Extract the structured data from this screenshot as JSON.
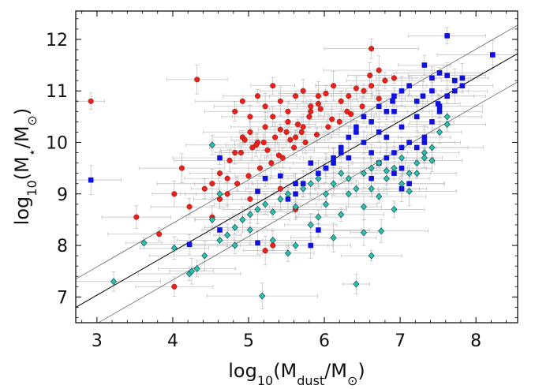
{
  "chart_data": {
    "type": "scatter",
    "title": "",
    "xlabel": "log10(Mdust/M⊙)",
    "ylabel": "log10(M⋆/M⊙)",
    "xlim": [
      2.72,
      8.55
    ],
    "ylim": [
      6.5,
      12.55
    ],
    "x_ticks": [
      3,
      4,
      5,
      6,
      7,
      8
    ],
    "y_ticks": [
      7,
      8,
      9,
      10,
      11,
      12
    ],
    "grid": false,
    "lines": [
      {
        "name": "best-fit",
        "slope": 0.845,
        "intercept": 4.5,
        "color": "#000000"
      },
      {
        "name": "upper-bound",
        "slope": 0.845,
        "intercept": 5.05,
        "color": "#555555"
      },
      {
        "name": "lower-bound",
        "slope": 0.845,
        "intercept": 3.95,
        "color": "#555555"
      }
    ],
    "series": [
      {
        "name": "red-circles",
        "marker": "circle",
        "color": "#e8211c",
        "x": [
          2.92,
          4.32,
          6.62,
          6.92,
          3.52,
          3.82,
          4.02,
          4.22,
          4.52,
          4.62,
          4.72,
          4.82,
          4.92,
          5.02,
          5.12,
          5.22,
          5.32,
          5.42,
          5.52,
          5.62,
          5.72,
          5.82,
          5.92,
          4.82,
          4.92,
          5.02,
          5.12,
          5.22,
          5.32,
          5.42,
          5.52,
          5.62,
          5.72,
          5.82,
          5.92,
          6.02,
          6.12,
          6.22,
          6.32,
          6.42,
          6.52,
          6.62,
          6.72,
          4.12,
          4.42,
          4.62,
          4.72,
          5.02,
          5.42,
          5.62,
          5.22,
          4.02,
          5.32,
          4.52,
          4.85,
          5.0,
          5.15,
          5.3,
          5.45,
          5.6,
          5.75,
          5.9,
          6.05,
          6.2,
          6.35,
          6.5,
          4.95,
          5.1,
          5.25,
          5.4,
          5.55,
          5.7,
          6.1,
          6.3,
          4.75,
          4.9,
          5.05,
          5.2,
          5.35,
          5.5,
          5.65,
          5.8,
          5.95,
          6.6,
          6.8,
          6.72
        ],
        "y": [
          10.8,
          11.22,
          11.82,
          11.25,
          8.55,
          8.22,
          9.0,
          8.75,
          9.2,
          8.9,
          9.3,
          9.8,
          10.1,
          10.2,
          10.0,
          10.3,
          10.5,
          10.25,
          10.4,
          10.1,
          10.3,
          10.6,
          10.9,
          10.6,
          10.8,
          10.5,
          10.9,
          10.7,
          11.1,
          10.8,
          10.6,
          10.9,
          11.0,
          10.7,
          10.75,
          10.95,
          11.1,
          10.8,
          10.9,
          11.05,
          11.0,
          11.1,
          10.85,
          9.5,
          9.1,
          9.4,
          9.0,
          8.9,
          9.1,
          8.7,
          7.9,
          7.2,
          8.0,
          8.55,
          9.2,
          9.35,
          9.5,
          9.6,
          9.7,
          9.9,
          10.0,
          10.15,
          10.3,
          10.4,
          10.55,
          10.7,
          10.05,
          9.95,
          9.85,
          9.75,
          10.05,
          10.2,
          10.45,
          10.6,
          9.65,
          9.8,
          9.9,
          10.0,
          10.1,
          10.2,
          10.35,
          10.5,
          10.65,
          11.3,
          11.2,
          11.4
        ]
      },
      {
        "name": "blue-squares",
        "marker": "square",
        "color": "#1111dd",
        "x": [
          2.92,
          4.22,
          4.62,
          5.12,
          5.92,
          5.82,
          7.62,
          8.22,
          7.32,
          7.52,
          7.72,
          7.82,
          6.72,
          6.92,
          7.02,
          7.12,
          7.22,
          7.42,
          6.52,
          6.62,
          6.82,
          6.02,
          6.12,
          6.22,
          6.32,
          6.42,
          5.72,
          5.62,
          5.52,
          6.72,
          7.02,
          7.52,
          6.92,
          7.32,
          5.22,
          6.12,
          7.02,
          7.12,
          7.42,
          7.62,
          6.82,
          6.62,
          7.22,
          6.92,
          6.42,
          6.52,
          5.82,
          5.92,
          6.02,
          6.32,
          6.22,
          6.72,
          7.32,
          7.52,
          7.72,
          7.02,
          6.82,
          6.62,
          7.12,
          7.22,
          6.92,
          7.62,
          7.42,
          7.82,
          5.62,
          5.42,
          5.12,
          4.62,
          7.02,
          6.9,
          7.3,
          7.5
        ],
        "y": [
          9.27,
          8.02,
          8.3,
          8.05,
          8.3,
          8.0,
          12.07,
          11.7,
          11.5,
          11.35,
          11.2,
          11.1,
          10.7,
          10.9,
          11.0,
          11.1,
          10.8,
          11.25,
          10.5,
          10.4,
          10.6,
          9.5,
          9.7,
          9.9,
          10.1,
          10.3,
          9.2,
          9.0,
          8.9,
          10.2,
          10.3,
          10.7,
          9.8,
          10.0,
          9.3,
          9.6,
          9.9,
          10.0,
          10.4,
          10.9,
          10.1,
          9.8,
          10.5,
          10.6,
          10.2,
          10.0,
          9.6,
          9.4,
          9.5,
          9.7,
          9.8,
          9.6,
          10.1,
          10.6,
          11.0,
          9.5,
          9.7,
          9.3,
          9.2,
          9.9,
          9.4,
          11.3,
          11.0,
          11.25,
          9.2,
          9.35,
          9.05,
          9.7,
          9.1,
          10.8,
          10.9,
          10.75
        ]
      },
      {
        "name": "cyan-diamonds",
        "marker": "diamond",
        "color": "#2fbfb0",
        "x": [
          3.22,
          3.62,
          4.02,
          4.22,
          4.25,
          4.32,
          4.42,
          4.52,
          4.62,
          4.72,
          4.82,
          4.92,
          5.02,
          5.12,
          5.22,
          5.32,
          5.42,
          5.52,
          5.62,
          5.72,
          5.82,
          5.92,
          6.02,
          6.12,
          6.22,
          6.32,
          6.42,
          6.52,
          6.62,
          6.72,
          6.82,
          6.92,
          7.02,
          7.12,
          7.22,
          7.32,
          7.42,
          7.52,
          7.62,
          5.18,
          5.52,
          6.12,
          6.42,
          6.62,
          6.75,
          4.52,
          4.62,
          4.82,
          5.02,
          5.32,
          5.62,
          5.82,
          6.22,
          6.52,
          6.92,
          7.12,
          7.32,
          7.62,
          6.02,
          5.92,
          6.32,
          6.62,
          6.82,
          7.02,
          7.22,
          7.42,
          6.72,
          6.52
        ],
        "y": [
          7.3,
          8.05,
          7.95,
          7.45,
          7.5,
          7.55,
          7.8,
          9.95,
          8.1,
          8.2,
          8.35,
          8.5,
          8.6,
          8.7,
          8.8,
          8.65,
          8.9,
          9.0,
          8.75,
          9.1,
          9.2,
          9.3,
          9.0,
          9.2,
          9.4,
          9.3,
          9.1,
          9.4,
          9.5,
          9.6,
          9.3,
          9.5,
          9.7,
          9.4,
          9.6,
          9.8,
          9.9,
          10.2,
          10.35,
          7.02,
          7.85,
          8.15,
          7.25,
          7.8,
          8.28,
          8.5,
          9.0,
          8.0,
          8.3,
          8.1,
          8.0,
          8.4,
          8.6,
          8.25,
          8.7,
          9.05,
          9.7,
          10.5,
          8.8,
          8.55,
          9.0,
          9.1,
          9.45,
          9.2,
          9.4,
          9.65,
          8.95,
          8.75
        ]
      }
    ]
  }
}
